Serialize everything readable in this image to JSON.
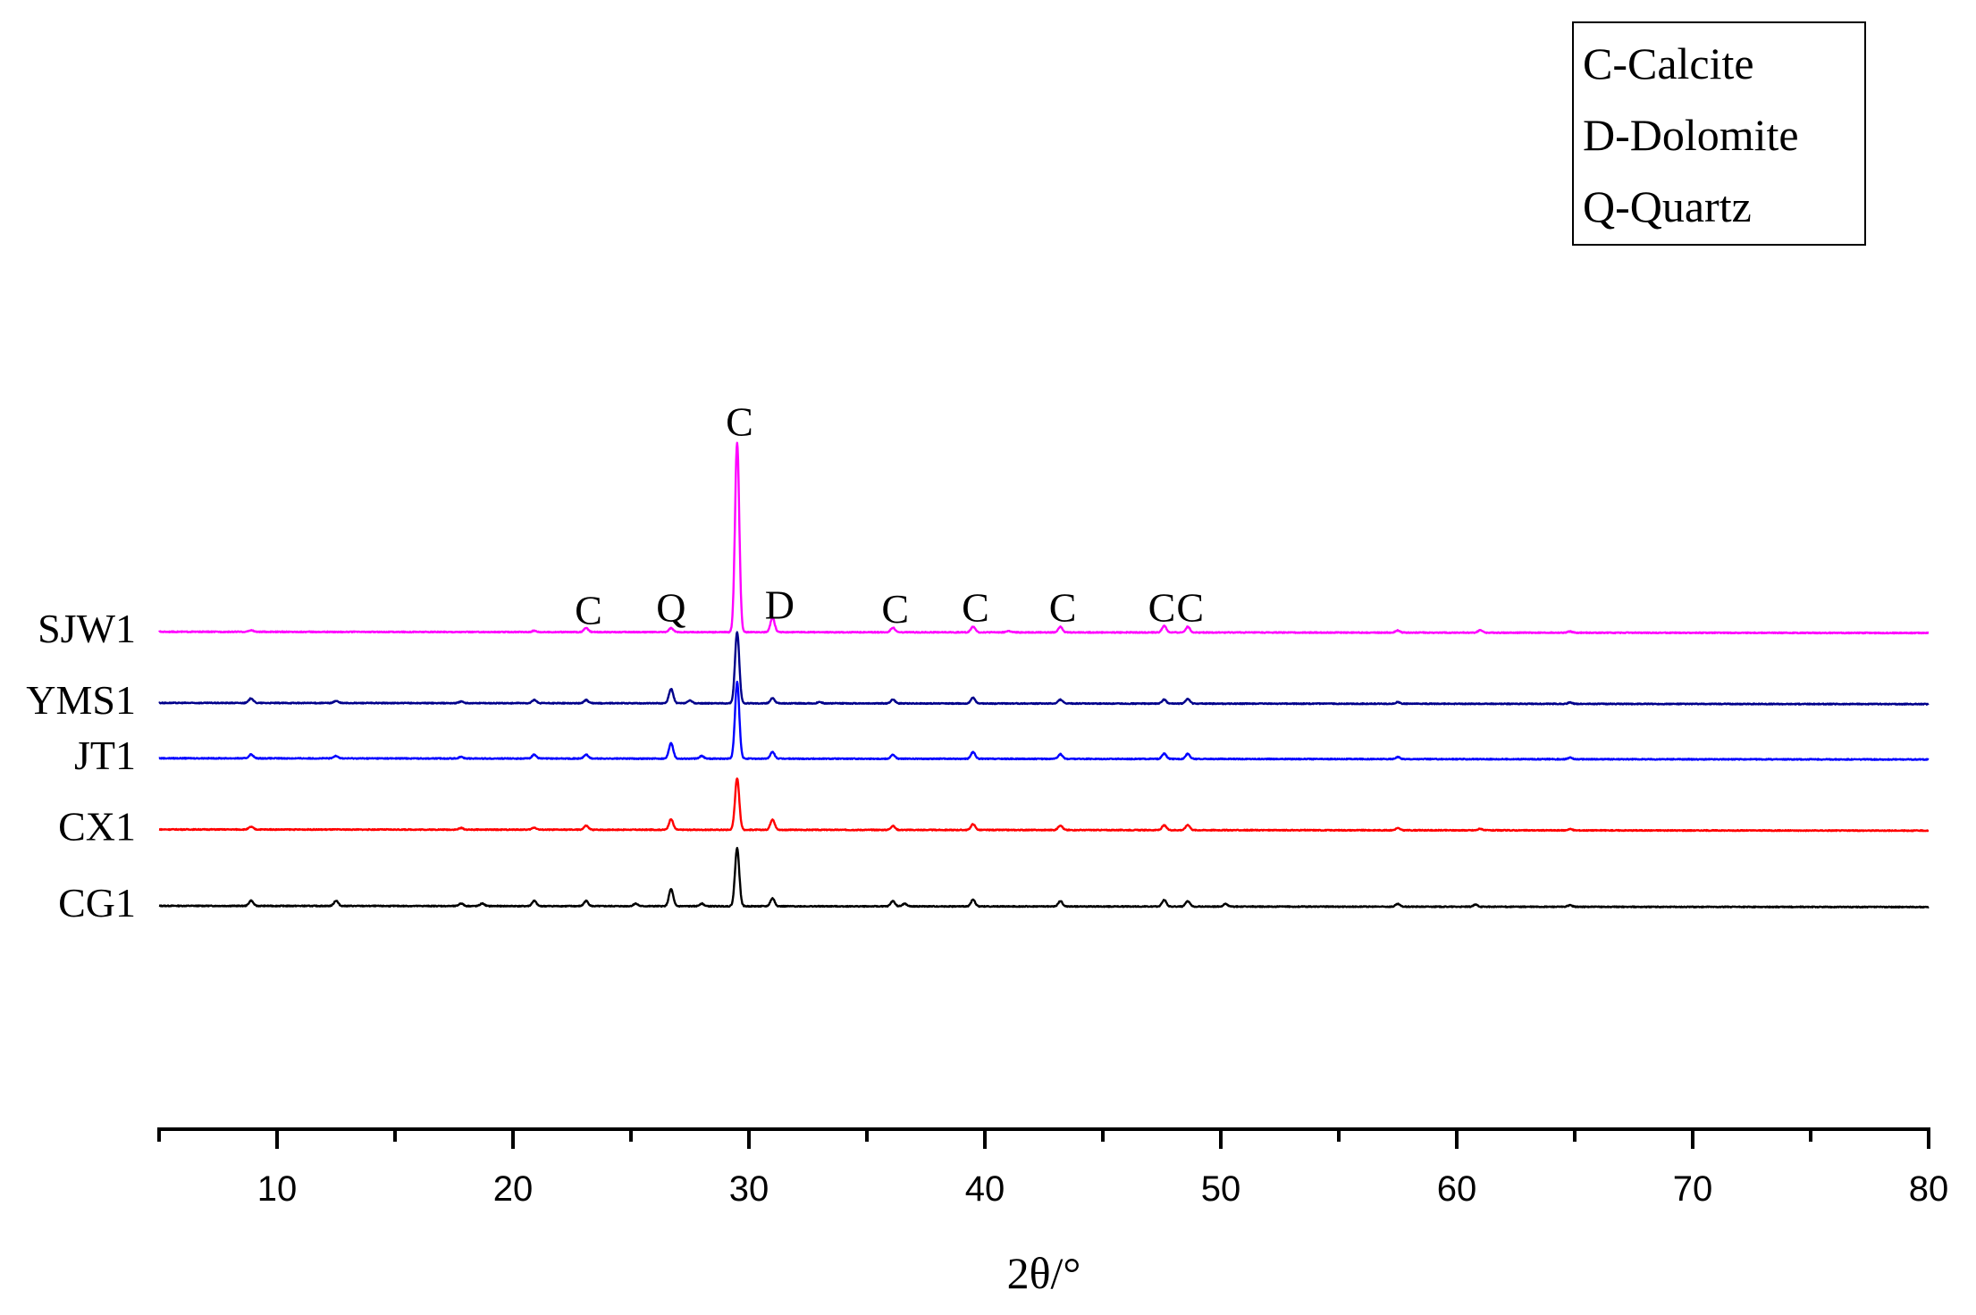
{
  "chart_data": {
    "type": "line",
    "title": "",
    "xlabel": "2θ/°",
    "ylabel": "",
    "xlim": [
      5,
      80
    ],
    "x_ticks": [
      10,
      20,
      30,
      40,
      50,
      60,
      70,
      80
    ],
    "x_tick_labels": [
      "10",
      "20",
      "30",
      "40",
      "50",
      "60",
      "70",
      "80"
    ],
    "y_axis_shown": false,
    "grid": false,
    "legend": {
      "placement": "top-right",
      "entries": [
        "C-Calcite",
        "D-Dolomite",
        "Q-Quartz"
      ]
    },
    "series": [
      {
        "name": "CG1",
        "color": "#000000",
        "baseline": 0.0,
        "peaks": [
          {
            "x": 8.9,
            "h": 2.0
          },
          {
            "x": 12.5,
            "h": 2.0
          },
          {
            "x": 17.8,
            "h": 1.0
          },
          {
            "x": 18.7,
            "h": 1.0
          },
          {
            "x": 20.9,
            "h": 2.0
          },
          {
            "x": 23.1,
            "h": 2.0
          },
          {
            "x": 25.2,
            "h": 1.0
          },
          {
            "x": 26.7,
            "h": 6.5
          },
          {
            "x": 28.0,
            "h": 1.0
          },
          {
            "x": 29.5,
            "h": 22.0
          },
          {
            "x": 31.0,
            "h": 3.0
          },
          {
            "x": 36.1,
            "h": 2.0
          },
          {
            "x": 36.6,
            "h": 1.0
          },
          {
            "x": 39.5,
            "h": 2.5
          },
          {
            "x": 43.2,
            "h": 2.0
          },
          {
            "x": 47.6,
            "h": 2.5
          },
          {
            "x": 48.6,
            "h": 2.0
          },
          {
            "x": 50.2,
            "h": 1.0
          },
          {
            "x": 57.5,
            "h": 1.0
          },
          {
            "x": 60.8,
            "h": 0.8
          },
          {
            "x": 64.8,
            "h": 0.6
          }
        ]
      },
      {
        "name": "CX1",
        "color": "#ff0000",
        "baseline": 29.0,
        "peaks": [
          {
            "x": 8.9,
            "h": 1.0
          },
          {
            "x": 17.8,
            "h": 0.6
          },
          {
            "x": 20.9,
            "h": 0.8
          },
          {
            "x": 23.1,
            "h": 1.5
          },
          {
            "x": 26.7,
            "h": 4.0
          },
          {
            "x": 29.5,
            "h": 19.5
          },
          {
            "x": 31.0,
            "h": 4.0
          },
          {
            "x": 36.1,
            "h": 1.5
          },
          {
            "x": 39.5,
            "h": 2.2
          },
          {
            "x": 43.2,
            "h": 1.8
          },
          {
            "x": 47.6,
            "h": 1.8
          },
          {
            "x": 48.6,
            "h": 2.0
          },
          {
            "x": 57.5,
            "h": 0.8
          },
          {
            "x": 61.0,
            "h": 0.6
          },
          {
            "x": 64.8,
            "h": 0.5
          }
        ]
      },
      {
        "name": "JT1",
        "color": "#0000ff",
        "baseline": 56.0,
        "peaks": [
          {
            "x": 8.9,
            "h": 1.5
          },
          {
            "x": 12.5,
            "h": 1.0
          },
          {
            "x": 17.8,
            "h": 0.6
          },
          {
            "x": 20.9,
            "h": 1.5
          },
          {
            "x": 23.1,
            "h": 1.5
          },
          {
            "x": 26.7,
            "h": 6.0
          },
          {
            "x": 28.0,
            "h": 1.0
          },
          {
            "x": 29.5,
            "h": 29.0
          },
          {
            "x": 31.0,
            "h": 2.5
          },
          {
            "x": 36.1,
            "h": 1.5
          },
          {
            "x": 39.5,
            "h": 2.5
          },
          {
            "x": 43.2,
            "h": 1.8
          },
          {
            "x": 47.6,
            "h": 2.0
          },
          {
            "x": 48.6,
            "h": 2.0
          },
          {
            "x": 57.5,
            "h": 0.8
          },
          {
            "x": 64.8,
            "h": 0.6
          }
        ]
      },
      {
        "name": "YMS1",
        "color": "#00008b",
        "baseline": 77.0,
        "peaks": [
          {
            "x": 8.9,
            "h": 1.8
          },
          {
            "x": 12.5,
            "h": 0.8
          },
          {
            "x": 17.8,
            "h": 0.6
          },
          {
            "x": 20.9,
            "h": 1.2
          },
          {
            "x": 23.1,
            "h": 1.2
          },
          {
            "x": 26.7,
            "h": 5.5
          },
          {
            "x": 27.5,
            "h": 1.0
          },
          {
            "x": 29.5,
            "h": 27.0
          },
          {
            "x": 31.0,
            "h": 2.0
          },
          {
            "x": 33.0,
            "h": 0.5
          },
          {
            "x": 36.1,
            "h": 1.5
          },
          {
            "x": 39.5,
            "h": 2.2
          },
          {
            "x": 43.2,
            "h": 1.5
          },
          {
            "x": 47.6,
            "h": 1.5
          },
          {
            "x": 48.6,
            "h": 1.8
          },
          {
            "x": 57.5,
            "h": 0.6
          },
          {
            "x": 64.8,
            "h": 0.5
          }
        ]
      },
      {
        "name": "SJW1",
        "color": "#ff00ff",
        "baseline": 104.0,
        "peaks": [
          {
            "x": 8.9,
            "h": 0.6
          },
          {
            "x": 20.9,
            "h": 0.5
          },
          {
            "x": 23.1,
            "h": 1.5
          },
          {
            "x": 26.7,
            "h": 1.5
          },
          {
            "x": 29.5,
            "h": 72.0
          },
          {
            "x": 31.0,
            "h": 5.5
          },
          {
            "x": 36.1,
            "h": 1.8
          },
          {
            "x": 39.5,
            "h": 2.2
          },
          {
            "x": 41.0,
            "h": 0.5
          },
          {
            "x": 43.2,
            "h": 2.2
          },
          {
            "x": 47.6,
            "h": 2.5
          },
          {
            "x": 48.6,
            "h": 2.2
          },
          {
            "x": 57.5,
            "h": 0.8
          },
          {
            "x": 61.0,
            "h": 1.0
          },
          {
            "x": 64.8,
            "h": 0.5
          }
        ]
      }
    ],
    "annotations": [
      {
        "text": "C",
        "x": 23.2,
        "y": 107.0
      },
      {
        "text": "Q",
        "x": 26.7,
        "y": 108.0
      },
      {
        "text": "C",
        "x": 29.6,
        "y": 178.5
      },
      {
        "text": "D",
        "x": 31.3,
        "y": 109.0
      },
      {
        "text": "C",
        "x": 36.2,
        "y": 107.5
      },
      {
        "text": "C",
        "x": 39.6,
        "y": 108.0
      },
      {
        "text": "C",
        "x": 43.3,
        "y": 108.0
      },
      {
        "text": "C",
        "x": 47.5,
        "y": 108.0
      },
      {
        "text": "C",
        "x": 48.7,
        "y": 108.0
      }
    ]
  }
}
